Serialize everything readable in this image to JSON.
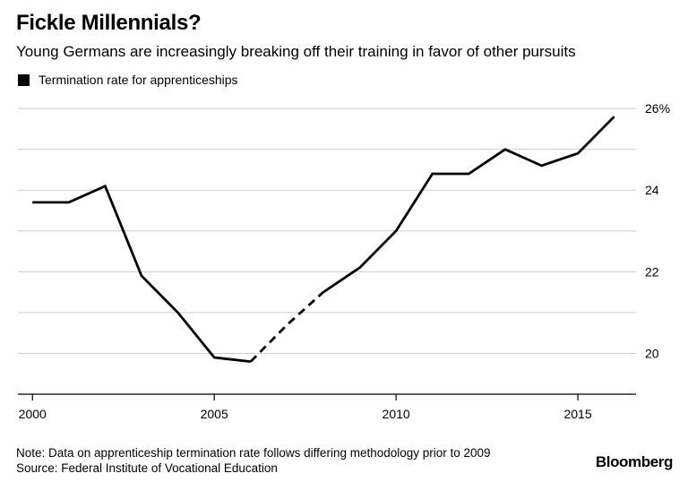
{
  "chart_data": {
    "type": "line",
    "title": "Fickle Millennials?",
    "subtitle": "Young Germans are increasingly breaking off their training in favor of other pursuits",
    "legend": [
      "Termination rate for apprenticeships"
    ],
    "series": [
      {
        "name": "Termination rate for apprenticeships",
        "x": [
          2000,
          2001,
          2002,
          2003,
          2004,
          2005,
          2006,
          2007,
          2008,
          2009,
          2010,
          2011,
          2012,
          2013,
          2014,
          2015,
          2016
        ],
        "values": [
          23.7,
          23.7,
          24.1,
          21.9,
          21.0,
          19.9,
          19.8,
          20.7,
          21.5,
          22.1,
          23.0,
          24.4,
          24.4,
          25.0,
          24.6,
          24.9,
          25.8
        ],
        "dashed_range": [
          2006,
          2008
        ]
      }
    ],
    "xlim": [
      1999.6,
      2016.6
    ],
    "ylim": [
      19,
      26.2
    ],
    "x_ticks": [
      2000,
      2005,
      2010,
      2015
    ],
    "x_tick_labels": [
      "2000",
      "2005",
      "2010",
      "2015"
    ],
    "y_ticks": [
      20,
      21,
      22,
      23,
      24,
      25,
      26
    ],
    "y_tick_labels": {
      "20": "20",
      "22": "22",
      "24": "24",
      "26": "26%"
    },
    "grid": true,
    "colors": {
      "line": "#000000",
      "grid": "#cccccc",
      "axis": "#000000"
    }
  },
  "footer": {
    "note": "Note: Data on apprenticeship termination rate follows differing methodology prior to 2009",
    "source": "Source: Federal Institute of Vocational Education",
    "brand": "Bloomberg"
  }
}
